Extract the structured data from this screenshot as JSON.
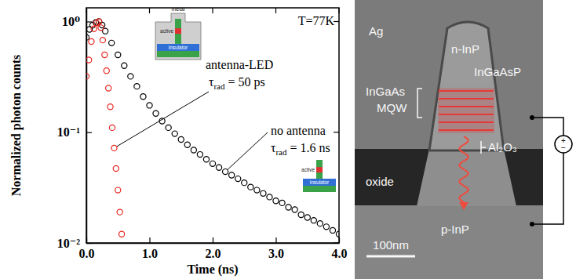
{
  "chart_data": {
    "type": "scatter",
    "x_label": "Time (ns)",
    "y_label": "Normalized photon counts",
    "log": "y",
    "xlim": [
      0,
      4
    ],
    "ylim": [
      0.01,
      1.33
    ],
    "xticks": [
      {
        "value": 0,
        "label": "0.0"
      },
      {
        "value": 1,
        "label": "1.0"
      },
      {
        "value": 2,
        "label": "2.0"
      },
      {
        "value": 3,
        "label": "3.0"
      },
      {
        "value": 4,
        "label": "4.0"
      }
    ],
    "yticks": [
      {
        "value": 0.01,
        "label": "10⁻²"
      },
      {
        "value": 0.1,
        "label": "10⁻¹"
      },
      {
        "value": 1,
        "label": "10⁰"
      }
    ],
    "marker": "open-circle",
    "series": [
      {
        "name": "antenna-LED",
        "color": "#e8251e",
        "x": [
          0.0,
          0.04,
          0.08,
          0.12,
          0.16,
          0.2,
          0.23,
          0.26,
          0.29,
          0.32,
          0.35,
          0.38,
          0.41,
          0.44,
          0.47,
          0.5,
          0.53,
          0.56
        ],
        "values": [
          0.32,
          0.45,
          0.66,
          0.86,
          0.97,
          1.0,
          0.88,
          0.68,
          0.5,
          0.36,
          0.25,
          0.17,
          0.11,
          0.072,
          0.047,
          0.03,
          0.019,
          0.012
        ]
      },
      {
        "name": "no antenna",
        "color": "#000000",
        "x": [
          0.0,
          0.05,
          0.1,
          0.15,
          0.2,
          0.25,
          0.3,
          0.4,
          0.5,
          0.6,
          0.7,
          0.8,
          0.9,
          1.0,
          1.1,
          1.2,
          1.3,
          1.4,
          1.5,
          1.6,
          1.7,
          1.8,
          1.9,
          2.0,
          2.1,
          2.2,
          2.3,
          2.4,
          2.5,
          2.6,
          2.7,
          2.8,
          2.9,
          3.0,
          3.1,
          3.2,
          3.3,
          3.4,
          3.5,
          3.6,
          3.7,
          3.8,
          3.9,
          4.0
        ],
        "values": [
          0.72,
          0.85,
          0.93,
          0.98,
          1.0,
          0.93,
          0.82,
          0.64,
          0.5,
          0.4,
          0.32,
          0.26,
          0.21,
          0.175,
          0.148,
          0.126,
          0.11,
          0.097,
          0.086,
          0.077,
          0.069,
          0.063,
          0.057,
          0.052,
          0.048,
          0.044,
          0.041,
          0.038,
          0.035,
          0.032,
          0.03,
          0.028,
          0.026,
          0.024,
          0.023,
          0.021,
          0.02,
          0.018,
          0.017,
          0.016,
          0.015,
          0.014,
          0.013,
          0.012
        ]
      }
    ],
    "annotations": [
      {
        "symbol": "τ",
        "subscript": "rad",
        "text": "= 50 ps"
      },
      {
        "symbol": "τ",
        "subscript": "rad",
        "text": "= 1.6 ns"
      },
      {
        "text": "T=77K"
      }
    ],
    "insets": [
      {
        "labels": [
          "metal",
          "active",
          "insulator"
        ]
      },
      {
        "labels": [
          "active",
          "insulator"
        ]
      }
    ]
  },
  "image_panel": {
    "labels": {
      "metal": "Ag",
      "n_cladding": "n-InP",
      "barrier": "InGaAsP",
      "wells": "InGaAs",
      "wells_group": "MQW",
      "liner": "Al₂O₃",
      "insulator": "oxide",
      "substrate": "p-InP"
    },
    "scale_bar": "100nm",
    "source": {
      "plus": "+",
      "minus": "−"
    }
  }
}
